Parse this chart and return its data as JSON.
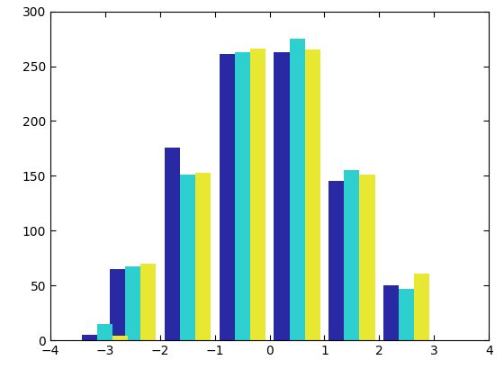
{
  "bin_centers": [
    -3.0,
    -2.0,
    -1.0,
    0.0,
    0.5,
    1.5,
    2.5
  ],
  "series1": [
    5,
    65,
    176,
    261,
    263,
    145,
    50
  ],
  "series2": [
    15,
    67,
    151,
    263,
    275,
    155,
    47
  ],
  "series3": [
    4,
    70,
    153,
    266,
    265,
    151,
    61
  ],
  "colors": [
    "#2929a3",
    "#2ecfcf",
    "#e8e832"
  ],
  "xlim": [
    -4,
    4
  ],
  "ylim": [
    0,
    300
  ],
  "yticks": [
    0,
    50,
    100,
    150,
    200,
    250,
    300
  ],
  "xticks": [
    -4,
    -3,
    -2,
    -1,
    0,
    1,
    2,
    3,
    4
  ],
  "bar_width": 0.28,
  "figsize": [
    5.6,
    4.2
  ],
  "dpi": 100,
  "bg_color": "#ffffff"
}
